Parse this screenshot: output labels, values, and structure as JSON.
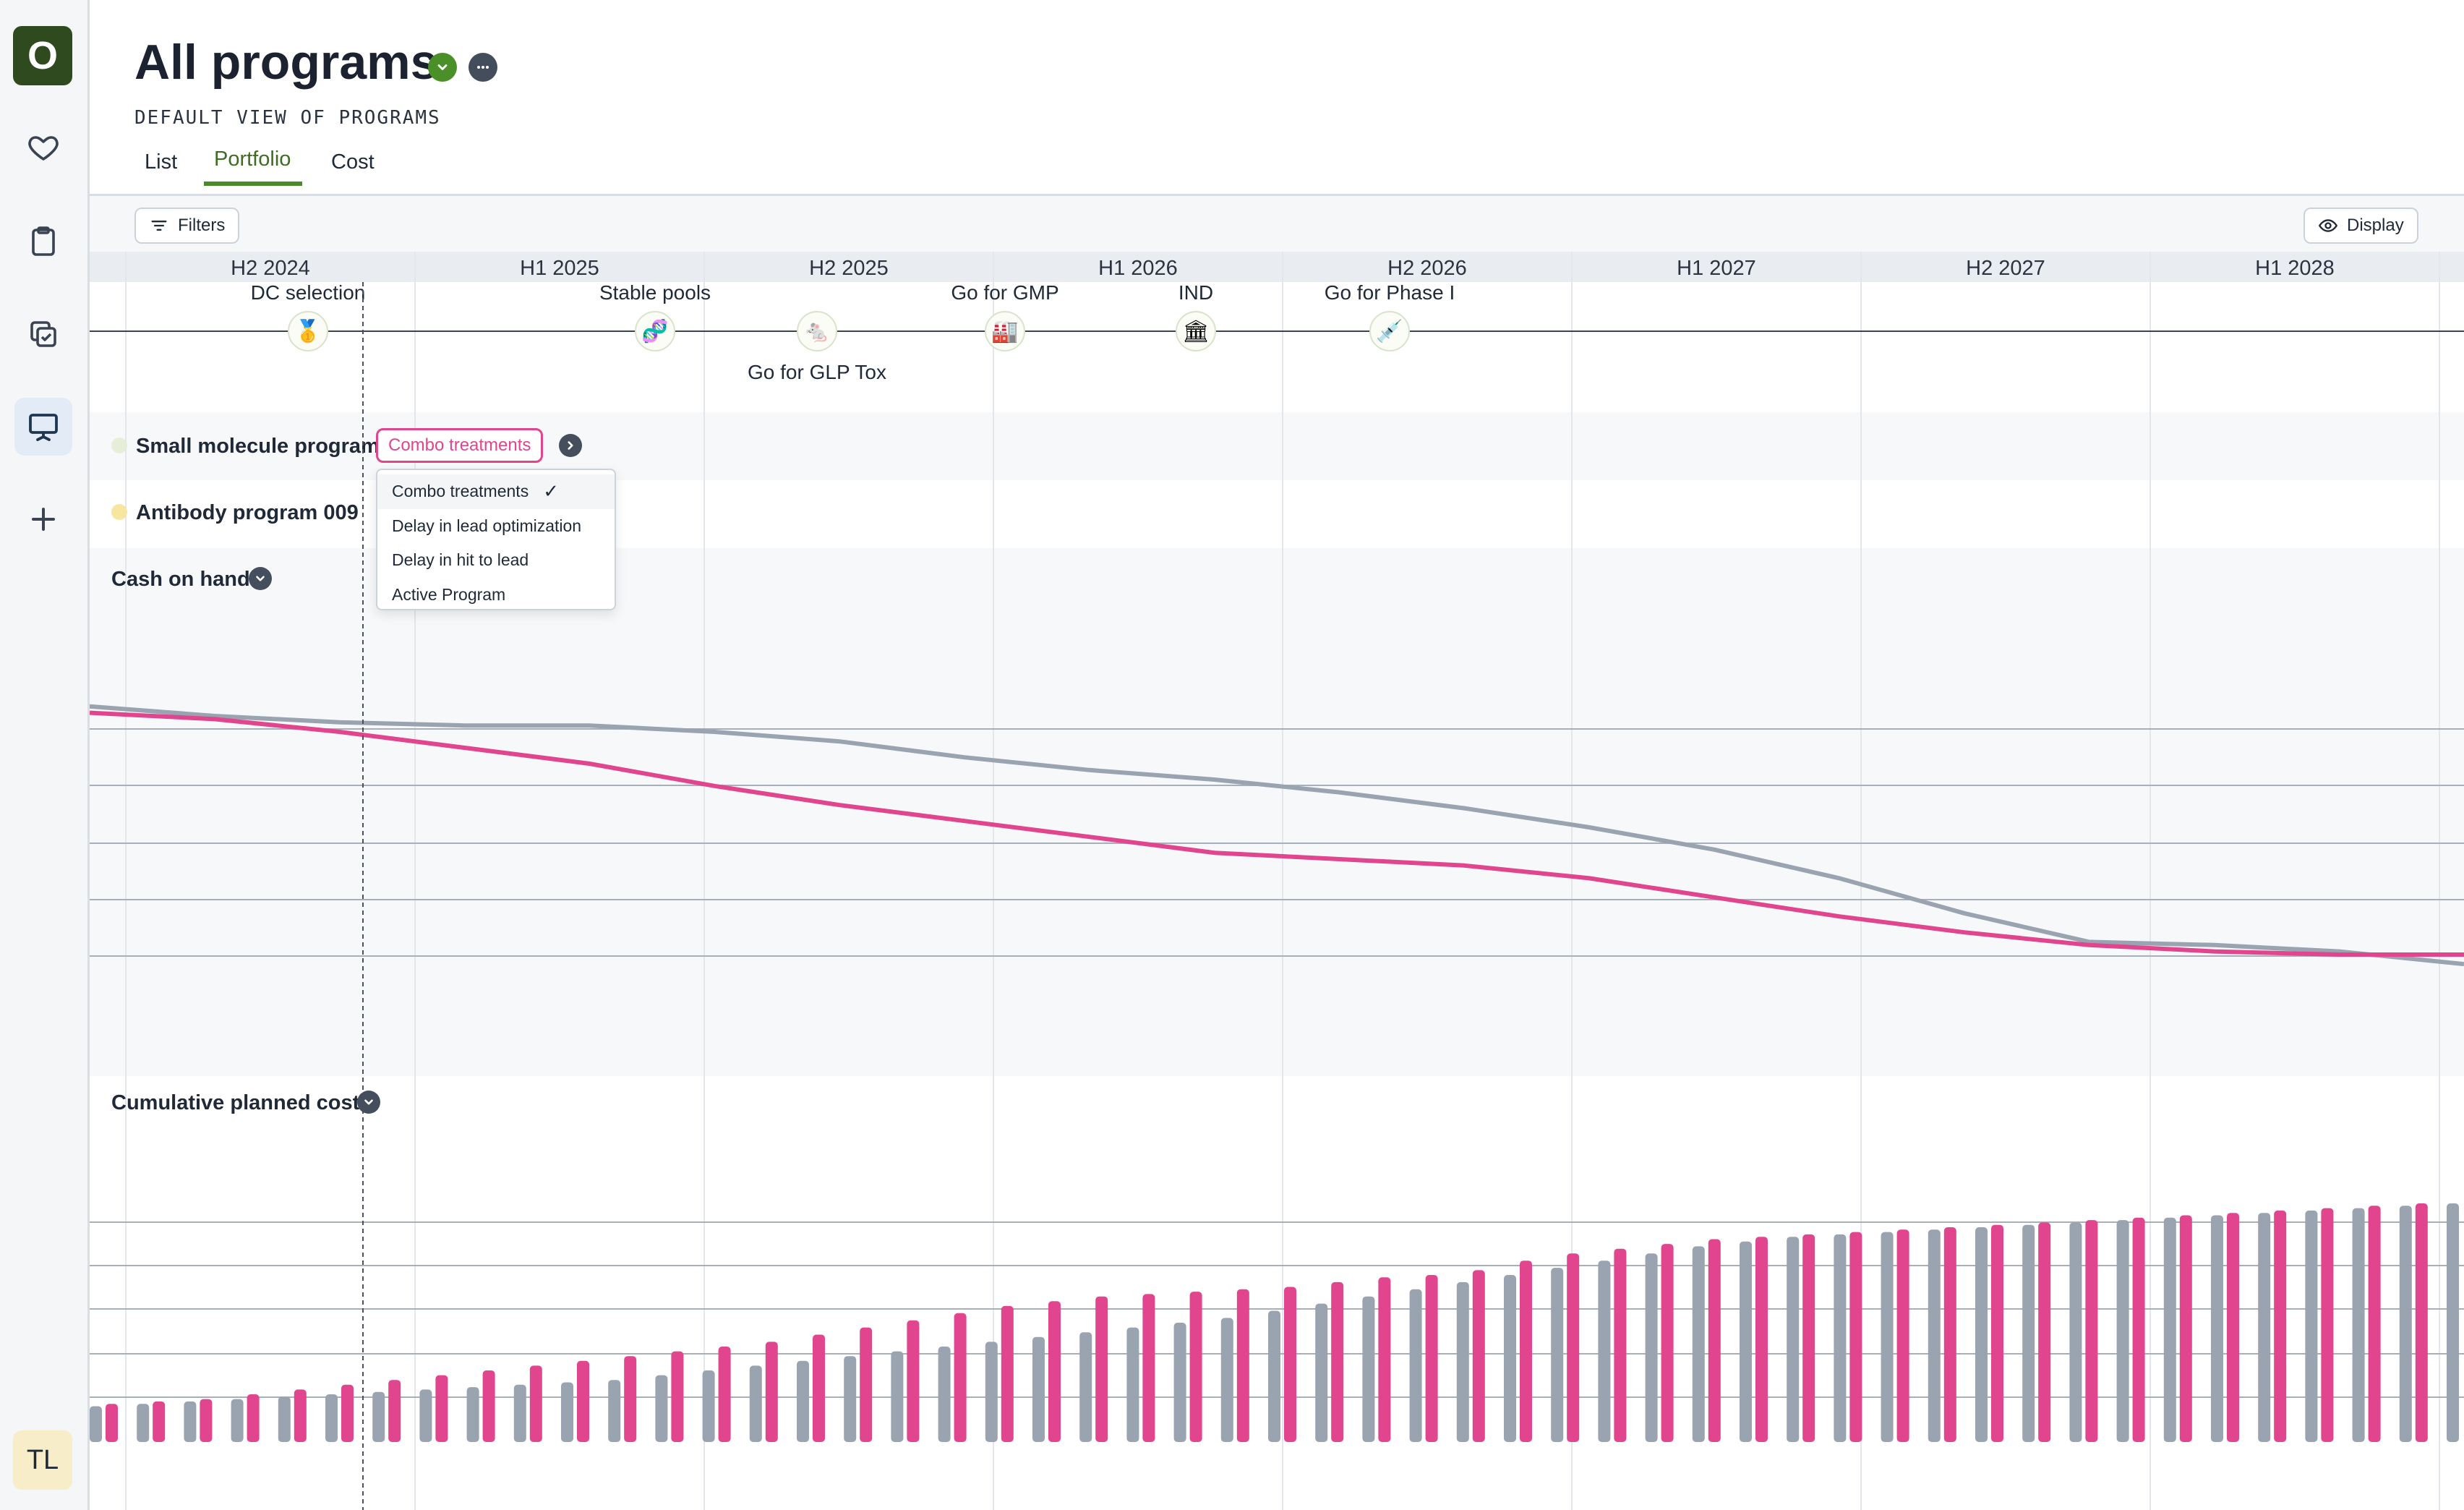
{
  "app": {
    "logo_letter": "O"
  },
  "nav": [
    {
      "name": "favorites",
      "icon": "heart-icon"
    },
    {
      "name": "clipboard",
      "icon": "clipboard-icon"
    },
    {
      "name": "tasks",
      "icon": "copy-check-icon"
    },
    {
      "name": "presentation",
      "icon": "presentation-icon",
      "active": true
    },
    {
      "name": "add",
      "icon": "plus-icon"
    }
  ],
  "user": {
    "initials": "TL"
  },
  "header": {
    "title": "All programs",
    "subtitle": "DEFAULT VIEW OF PROGRAMS",
    "tabs": [
      {
        "label": "List",
        "active": false
      },
      {
        "label": "Portfolio",
        "active": true
      },
      {
        "label": "Cost",
        "active": false
      }
    ]
  },
  "toolbar": {
    "filters_label": "Filters",
    "display_label": "Display"
  },
  "timeline": {
    "periods": [
      "H2 2024",
      "H1 2025",
      "H2 2025",
      "H1 2026",
      "H2 2026",
      "H1 2027",
      "H2 2027",
      "H1 2028"
    ],
    "milestones": [
      {
        "label": "DC selection",
        "icon": "medal-icon",
        "glyph": "🥇",
        "period_index": 0,
        "frac": 0.63,
        "label_pos": "above"
      },
      {
        "label": "Stable pools",
        "icon": "dna-icon",
        "glyph": "🧬",
        "period_index": 1,
        "frac": 0.83,
        "label_pos": "above"
      },
      {
        "label": "Go for GLP Tox",
        "icon": "rat-icon",
        "glyph": "🐁",
        "period_index": 2,
        "frac": 0.39,
        "label_pos": "below"
      },
      {
        "label": "Go for GMP",
        "icon": "factory-icon",
        "glyph": "🏭",
        "period_index": 3,
        "frac": 0.04,
        "label_pos": "above"
      },
      {
        "label": "IND",
        "icon": "building-icon",
        "glyph": "🏛",
        "period_index": 3,
        "frac": 0.7,
        "label_pos": "above"
      },
      {
        "label": "Go for Phase I",
        "icon": "syringe-icon",
        "glyph": "💉",
        "period_index": 4,
        "frac": 0.37,
        "label_pos": "above"
      }
    ]
  },
  "programs": [
    {
      "name": "Small molecule program",
      "dot_color": "#e6eed9",
      "tag": "Combo treatments"
    },
    {
      "name": "Antibody program 009",
      "dot_color": "#f7e6a0"
    }
  ],
  "scenario_menu": {
    "options": [
      "Combo treatments",
      "Delay in lead optimization",
      "Delay in hit to lead",
      "Active Program"
    ],
    "selected": "Combo treatments",
    "check": "✓"
  },
  "sections": {
    "cash_label": "Cash on hand",
    "cost_label": "Cumulative planned cost"
  },
  "colors": {
    "accent": "#e0458e",
    "baseline": "#9aa3b0",
    "brand": "#2f4a1f",
    "status": "#4b8f29"
  },
  "chart_data": [
    {
      "type": "line",
      "title": "Cash on hand",
      "series": [
        {
          "color": "#9aa3b0",
          "values": [
            0.98,
            0.95,
            0.93,
            0.92,
            0.92,
            0.9,
            0.87,
            0.82,
            0.78,
            0.75,
            0.71,
            0.66,
            0.6,
            0.53,
            0.44,
            0.33,
            0.24,
            0.23,
            0.21,
            0.17
          ]
        },
        {
          "color": "#e0458e",
          "values": [
            0.96,
            0.94,
            0.9,
            0.85,
            0.8,
            0.73,
            0.67,
            0.62,
            0.57,
            0.52,
            0.5,
            0.48,
            0.44,
            0.38,
            0.32,
            0.27,
            0.23,
            0.21,
            0.2,
            0.2
          ]
        }
      ]
    },
    {
      "type": "bar",
      "title": "Cumulative planned cost",
      "series": [
        {
          "color": "#9aa3b0",
          "values": [
            0.15,
            0.16,
            0.17,
            0.18,
            0.19,
            0.2,
            0.21,
            0.22,
            0.23,
            0.24,
            0.25,
            0.26,
            0.28,
            0.3,
            0.32,
            0.34,
            0.36,
            0.38,
            0.4,
            0.42,
            0.44,
            0.46,
            0.48,
            0.5,
            0.52,
            0.55,
            0.58,
            0.61,
            0.64,
            0.67,
            0.7,
            0.73,
            0.76,
            0.79,
            0.82,
            0.84,
            0.86,
            0.87,
            0.88,
            0.89,
            0.9,
            0.91,
            0.92,
            0.93,
            0.94,
            0.95,
            0.96,
            0.97,
            0.98,
            0.99,
            1.0
          ]
        },
        {
          "color": "#e0458e",
          "values": [
            0.16,
            0.17,
            0.18,
            0.2,
            0.22,
            0.24,
            0.26,
            0.28,
            0.3,
            0.32,
            0.34,
            0.36,
            0.38,
            0.4,
            0.42,
            0.45,
            0.48,
            0.51,
            0.54,
            0.57,
            0.59,
            0.61,
            0.62,
            0.63,
            0.64,
            0.65,
            0.67,
            0.69,
            0.7,
            0.72,
            0.76,
            0.79,
            0.81,
            0.83,
            0.85,
            0.86,
            0.87,
            0.88,
            0.89,
            0.9,
            0.91,
            0.92,
            0.93,
            0.94,
            0.95,
            0.96,
            0.97,
            0.98,
            0.99,
            1.0
          ]
        }
      ]
    }
  ]
}
